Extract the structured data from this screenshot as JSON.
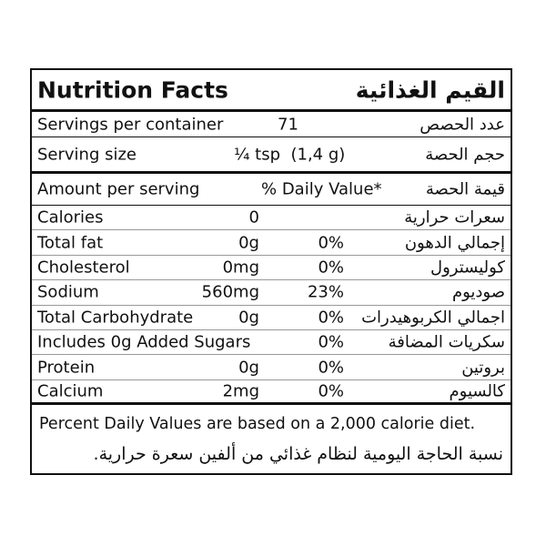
{
  "header": {
    "title_en": "Nutrition Facts",
    "title_ar": "القيم الغذائية"
  },
  "servings": {
    "label_en": "Servings per container",
    "value": "71",
    "label_ar": "عدد الحصص"
  },
  "serving_size": {
    "label_en": "Serving size",
    "value": "¼ tsp  (1,4 g)",
    "label_ar": "حجم الحصة"
  },
  "amount_header": {
    "label_en": "Amount per serving",
    "value": "% Daily Value*",
    "label_ar": "قيمة الحصة"
  },
  "nutrients": [
    {
      "name_en": "Calories",
      "amount": "0",
      "name_ar": "سعرات حرارية"
    },
    {
      "name_en": "Total fat",
      "amount": "0g",
      "daily_value": "0%",
      "name_ar": "إجمالي الدهون"
    },
    {
      "name_en": "Cholesterol",
      "amount": "0mg",
      "daily_value": "0%",
      "name_ar": "كوليسترول"
    },
    {
      "name_en": "Sodium",
      "amount": "560mg",
      "daily_value": "23%",
      "name_ar": "صوديوم"
    },
    {
      "name_en": "Total Carbohydrate",
      "amount": "0g",
      "daily_value": "0%",
      "name_ar": "اجمالي الكربوهيدرات"
    },
    {
      "name_en": "Includes 0g Added Sugars",
      "daily_value": "0%",
      "name_ar": "سكريات المضافة"
    },
    {
      "name_en": "Protein",
      "amount": "0g",
      "daily_value": "0%",
      "name_ar": "بروتين"
    },
    {
      "name_en": "Calcium",
      "amount": "2mg",
      "daily_value": "0%",
      "name_ar": "كالسيوم"
    }
  ],
  "footer": {
    "en": "Percent Daily Values are based on a 2,000 calorie diet.",
    "ar": "نسبة الحاجة اليومية لنظام غذائي من ألفين سعرة حرارية."
  }
}
